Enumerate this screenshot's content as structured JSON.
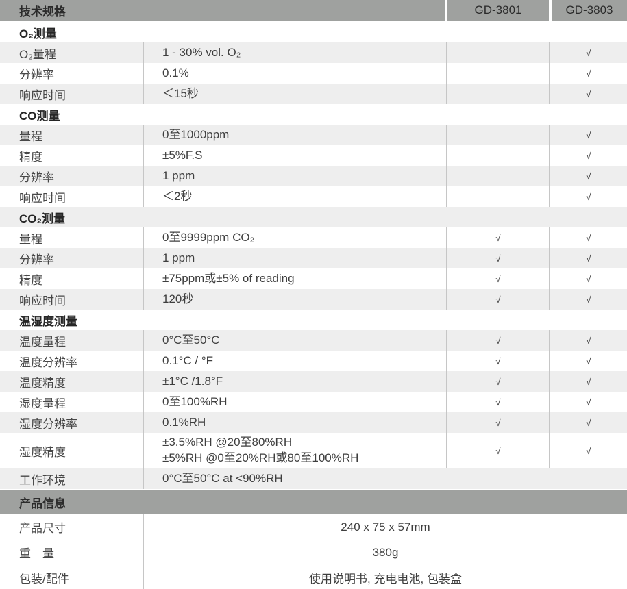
{
  "colors": {
    "header_bg": "#9fa19f",
    "row_alt_bg": "#eeeeee",
    "divider": "#c6c6c6",
    "header_text": "#2b2b2b"
  },
  "check_symbol": "√",
  "header": {
    "title": "技术规格",
    "col1": "GD-3801",
    "col2": "GD-3803"
  },
  "sections": [
    {
      "title": "O₂测量",
      "rows": [
        {
          "label": "O₂量程",
          "value": "1 - 30% vol. O₂",
          "gd3801": false,
          "gd3803": true
        },
        {
          "label": "分辨率",
          "value": "0.1%",
          "gd3801": false,
          "gd3803": true
        },
        {
          "label": "响应时间",
          "value": "＜15秒",
          "gd3801": false,
          "gd3803": true
        }
      ]
    },
    {
      "title": "CO测量",
      "rows": [
        {
          "label": "量程",
          "value": "0至1000ppm",
          "gd3801": false,
          "gd3803": true
        },
        {
          "label": "精度",
          "value": "±5%F.S",
          "gd3801": false,
          "gd3803": true
        },
        {
          "label": "分辨率",
          "value": "1 ppm",
          "gd3801": false,
          "gd3803": true
        },
        {
          "label": "响应时间",
          "value": "＜2秒",
          "gd3801": false,
          "gd3803": true
        }
      ]
    },
    {
      "title": "CO₂测量",
      "rows": [
        {
          "label": "量程",
          "value": "0至9999ppm CO₂",
          "gd3801": true,
          "gd3803": true
        },
        {
          "label": "分辨率",
          "value": "1 ppm",
          "gd3801": true,
          "gd3803": true
        },
        {
          "label": "精度",
          "value": "±75ppm或±5% of reading",
          "gd3801": true,
          "gd3803": true
        },
        {
          "label": "响应时间",
          "value": "120秒",
          "gd3801": true,
          "gd3803": true
        }
      ]
    },
    {
      "title": "温湿度测量",
      "rows": [
        {
          "label": "温度量程",
          "value": "0°C至50°C",
          "gd3801": true,
          "gd3803": true
        },
        {
          "label": "温度分辨率",
          "value": "0.1°C / °F",
          "gd3801": true,
          "gd3803": true
        },
        {
          "label": "温度精度",
          "value": "±1°C /1.8°F",
          "gd3801": true,
          "gd3803": true
        },
        {
          "label": "湿度量程",
          "value": "0至100%RH",
          "gd3801": true,
          "gd3803": true
        },
        {
          "label": "湿度分辨率",
          "value": "0.1%RH",
          "gd3801": true,
          "gd3803": true
        },
        {
          "label": "湿度精度",
          "value": "±3.5%RH @20至80%RH\n±5%RH @0至20%RH或80至100%RH",
          "gd3801": true,
          "gd3803": true
        },
        {
          "label": "工作环境",
          "value": "0°C至50°C at <90%RH",
          "gd3801": false,
          "gd3803": false,
          "check_cols": false
        }
      ]
    }
  ],
  "product_info": {
    "title": "产品信息",
    "rows": [
      {
        "label": "产品尺寸",
        "value": "240 x 75 x 57mm"
      },
      {
        "label": "重　量",
        "value": "380g"
      },
      {
        "label": "包装/配件",
        "value": "使用说明书, 充电电池, 包装盒"
      }
    ]
  }
}
